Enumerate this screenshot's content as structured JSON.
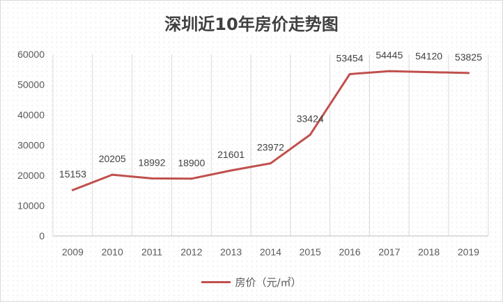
{
  "chart_data": {
    "type": "line",
    "title": "深圳近10年房价走势图",
    "categories": [
      "2009",
      "2010",
      "2011",
      "2012",
      "2013",
      "2014",
      "2015",
      "2016",
      "2017",
      "2018",
      "2019"
    ],
    "series": [
      {
        "name": "房价（元/㎡）",
        "values": [
          15153,
          20205,
          18992,
          18900,
          21601,
          23972,
          33424,
          53454,
          54445,
          54120,
          53825
        ],
        "color": "#c0504d"
      }
    ],
    "ylim": [
      0,
      60000
    ],
    "yticks": [
      0,
      10000,
      20000,
      30000,
      40000,
      50000,
      60000
    ],
    "grid": "vertical",
    "data_labels": true,
    "legend": "bottom",
    "xlabel": "",
    "ylabel": ""
  }
}
